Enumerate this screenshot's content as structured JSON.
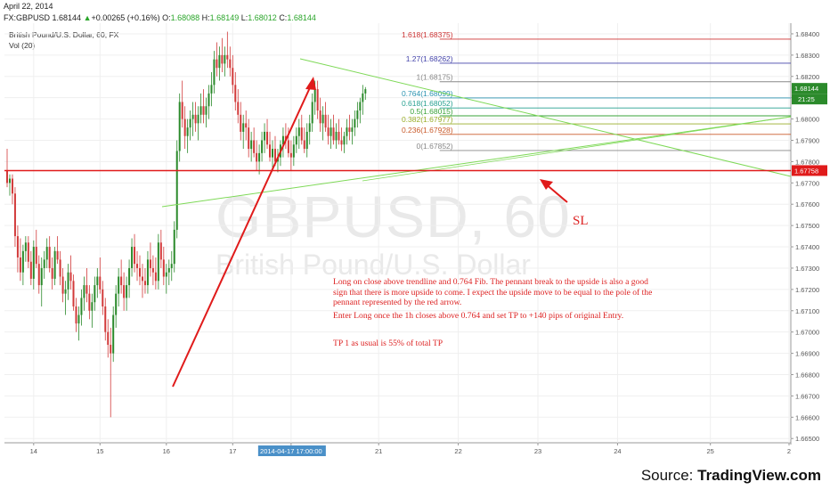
{
  "header": {
    "date": "April 22, 2014",
    "symbol": "FX:GBPUSD",
    "last": "1.68144",
    "change": "+0.00265 (+0.16%)",
    "o": "1.68088",
    "h": "1.68149",
    "l": "1.68012",
    "c": "1.68144",
    "legend_title": "British Pound/U.S. Dollar, 60, FX",
    "legend_vol": "Vol (20)"
  },
  "watermark": {
    "symbol": "GBPUSD, 60",
    "name": "British Pound/U.S. Dollar"
  },
  "source": {
    "prefix": "Source: ",
    "brand": "TradingView.com"
  },
  "annotations": {
    "note1": "Long on close above trendline and 0.764 Fib. The pennant break to the upside is also a good sign that there is more upside to come. I expect the upside move to be equal to the pole of the pennant represented by the red arrow.",
    "note2": "Enter Long once the 1h closes above 0.764 and set TP to +140 pips of original Entry.",
    "note3": "TP 1 as usual is 55% of total TP",
    "sl": "SL"
  },
  "colors": {
    "up": "#2b8a2b",
    "down": "#d23a3a",
    "fib": "#888888",
    "trend": "#7ed957",
    "red": "#e01b1b",
    "blue": "#3a3aa8"
  },
  "chart_data": {
    "type": "candlestick",
    "title": "British Pound/U.S. Dollar, 60, FX",
    "ylim": [
      1.6648,
      1.6845
    ],
    "y_ticks": [
      "1.68400",
      "1.68300",
      "1.68200",
      "1.68100",
      "1.68000",
      "1.67900",
      "1.67800",
      "1.67700",
      "1.67600",
      "1.67500",
      "1.67400",
      "1.67300",
      "1.67200",
      "1.67100",
      "1.67000",
      "1.66900",
      "1.66800",
      "1.66700",
      "1.66600",
      "1.66500"
    ],
    "x_ticks": [
      "14",
      "15",
      "16",
      "17",
      "2014-04-17 17:00:00",
      "21",
      "22",
      "23",
      "24",
      "25",
      "2"
    ],
    "x_tick_bars": [
      10,
      35,
      60,
      85,
      107,
      140,
      170,
      200,
      230,
      265,
      297
    ],
    "last_price_label": "1.68144",
    "time_label": "21:25",
    "support_label": "1.67758",
    "support_level": 1.67758,
    "fib_levels": [
      {
        "label": "1.618(1.68375)",
        "value": 1.68375,
        "color": "#cc3333"
      },
      {
        "label": "1.27(1.68262)",
        "value": 1.68262,
        "color": "#4444aa"
      },
      {
        "label": "1(1.68175)",
        "value": 1.68175,
        "color": "#888888"
      },
      {
        "label": "0.764(1.68099)",
        "value": 1.68099,
        "color": "#2a93b0"
      },
      {
        "label": "0.618(1.68052)",
        "value": 1.68052,
        "color": "#27a090"
      },
      {
        "label": "0.5(1.68015)",
        "value": 1.68015,
        "color": "#3aa33a"
      },
      {
        "label": "0.382(1.67977)",
        "value": 1.67977,
        "color": "#9aae2a"
      },
      {
        "label": "0.236(1.67928)",
        "value": 1.67928,
        "color": "#c95a2a"
      },
      {
        "label": "0(1.67852)",
        "value": 1.67852,
        "color": "#888888"
      }
    ],
    "candles": [
      [
        1.6776,
        1.6786,
        1.6768,
        1.677
      ],
      [
        1.677,
        1.6774,
        1.6764,
        1.6772
      ],
      [
        1.6772,
        1.6774,
        1.676,
        1.6765
      ],
      [
        1.6765,
        1.6768,
        1.674,
        1.6745
      ],
      [
        1.6745,
        1.675,
        1.6728,
        1.6735
      ],
      [
        1.6735,
        1.6744,
        1.6724,
        1.6728
      ],
      [
        1.6728,
        1.6741,
        1.6722,
        1.6738
      ],
      [
        1.6738,
        1.6745,
        1.6733,
        1.6742
      ],
      [
        1.6742,
        1.6745,
        1.673,
        1.6733
      ],
      [
        1.6733,
        1.6738,
        1.6722,
        1.6725
      ],
      [
        1.6725,
        1.6743,
        1.672,
        1.674
      ],
      [
        1.674,
        1.6748,
        1.673,
        1.6732
      ],
      [
        1.6732,
        1.6736,
        1.6718,
        1.6722
      ],
      [
        1.6722,
        1.6735,
        1.6712,
        1.673
      ],
      [
        1.673,
        1.6738,
        1.6725,
        1.6734
      ],
      [
        1.6734,
        1.6744,
        1.673,
        1.674
      ],
      [
        1.674,
        1.6745,
        1.6728,
        1.673
      ],
      [
        1.673,
        1.6735,
        1.672,
        1.6725
      ],
      [
        1.6725,
        1.674,
        1.6722,
        1.6738
      ],
      [
        1.6738,
        1.6745,
        1.6732,
        1.6734
      ],
      [
        1.6734,
        1.6738,
        1.6722,
        1.6726
      ],
      [
        1.6726,
        1.673,
        1.6714,
        1.6718
      ],
      [
        1.6718,
        1.6724,
        1.6708,
        1.672
      ],
      [
        1.672,
        1.6732,
        1.6715,
        1.6728
      ],
      [
        1.6728,
        1.6736,
        1.672,
        1.6724
      ],
      [
        1.6724,
        1.6727,
        1.671,
        1.6712
      ],
      [
        1.6712,
        1.6716,
        1.67,
        1.6704
      ],
      [
        1.6704,
        1.6712,
        1.6696,
        1.6708
      ],
      [
        1.6708,
        1.672,
        1.6703,
        1.6716
      ],
      [
        1.6716,
        1.6726,
        1.671,
        1.6722
      ],
      [
        1.6722,
        1.673,
        1.6714,
        1.6718
      ],
      [
        1.6718,
        1.6722,
        1.6706,
        1.671
      ],
      [
        1.671,
        1.6718,
        1.6702,
        1.6714
      ],
      [
        1.6714,
        1.6726,
        1.671,
        1.6722
      ],
      [
        1.6722,
        1.673,
        1.6716,
        1.6726
      ],
      [
        1.6726,
        1.6735,
        1.6718,
        1.672
      ],
      [
        1.672,
        1.6724,
        1.6708,
        1.6712
      ],
      [
        1.6712,
        1.6716,
        1.6696,
        1.67
      ],
      [
        1.67,
        1.6706,
        1.6688,
        1.6694
      ],
      [
        1.6694,
        1.6702,
        1.666,
        1.669
      ],
      [
        1.669,
        1.6712,
        1.6686,
        1.6708
      ],
      [
        1.6708,
        1.6722,
        1.6702,
        1.6718
      ],
      [
        1.6718,
        1.673,
        1.6712,
        1.6726
      ],
      [
        1.6726,
        1.6734,
        1.6718,
        1.6722
      ],
      [
        1.6722,
        1.6728,
        1.671,
        1.6716
      ],
      [
        1.6716,
        1.6726,
        1.671,
        1.6722
      ],
      [
        1.6722,
        1.6734,
        1.6716,
        1.673
      ],
      [
        1.673,
        1.6744,
        1.6726,
        1.674
      ],
      [
        1.674,
        1.6746,
        1.6728,
        1.6732
      ],
      [
        1.6732,
        1.6738,
        1.6724,
        1.673
      ],
      [
        1.673,
        1.6736,
        1.6722,
        1.6726
      ],
      [
        1.6726,
        1.6732,
        1.6716,
        1.6724
      ],
      [
        1.6724,
        1.673,
        1.6718,
        1.6722
      ],
      [
        1.6722,
        1.6738,
        1.6718,
        1.6734
      ],
      [
        1.6734,
        1.6742,
        1.6726,
        1.673
      ],
      [
        1.673,
        1.6736,
        1.6722,
        1.6728
      ],
      [
        1.6728,
        1.6735,
        1.672,
        1.6724
      ],
      [
        1.6724,
        1.6746,
        1.672,
        1.6742
      ],
      [
        1.6742,
        1.6748,
        1.673,
        1.6734
      ],
      [
        1.6734,
        1.674,
        1.6722,
        1.6726
      ],
      [
        1.6726,
        1.6732,
        1.6718,
        1.6728
      ],
      [
        1.6728,
        1.6734,
        1.6722,
        1.673
      ],
      [
        1.673,
        1.6738,
        1.6724,
        1.6732
      ],
      [
        1.6732,
        1.6752,
        1.6728,
        1.6748
      ],
      [
        1.6748,
        1.679,
        1.6744,
        1.6785
      ],
      [
        1.6785,
        1.6812,
        1.678,
        1.6808
      ],
      [
        1.6808,
        1.6818,
        1.6796,
        1.68
      ],
      [
        1.68,
        1.6806,
        1.6786,
        1.6792
      ],
      [
        1.6792,
        1.68,
        1.6784,
        1.6796
      ],
      [
        1.6796,
        1.6804,
        1.679,
        1.68
      ],
      [
        1.68,
        1.6808,
        1.6792,
        1.6802
      ],
      [
        1.6802,
        1.6808,
        1.6794,
        1.6798
      ],
      [
        1.6798,
        1.6806,
        1.679,
        1.6802
      ],
      [
        1.6802,
        1.6812,
        1.6798,
        1.6806
      ],
      [
        1.6806,
        1.6814,
        1.6798,
        1.6802
      ],
      [
        1.6802,
        1.681,
        1.6796,
        1.6806
      ],
      [
        1.6806,
        1.6816,
        1.68,
        1.6812
      ],
      [
        1.6812,
        1.6822,
        1.6806,
        1.6816
      ],
      [
        1.6816,
        1.6832,
        1.6812,
        1.6828
      ],
      [
        1.6828,
        1.6836,
        1.682,
        1.6824
      ],
      [
        1.6824,
        1.6834,
        1.6818,
        1.683
      ],
      [
        1.683,
        1.6838,
        1.6822,
        1.6826
      ],
      [
        1.6826,
        1.6834,
        1.682,
        1.683
      ],
      [
        1.683,
        1.6841,
        1.6824,
        1.6828
      ],
      [
        1.6828,
        1.6834,
        1.682,
        1.6824
      ],
      [
        1.6824,
        1.683,
        1.6812,
        1.6816
      ],
      [
        1.6816,
        1.6822,
        1.6804,
        1.6808
      ],
      [
        1.6808,
        1.6814,
        1.6798,
        1.6802
      ],
      [
        1.6802,
        1.6808,
        1.679,
        1.6794
      ],
      [
        1.6794,
        1.6802,
        1.6786,
        1.6798
      ],
      [
        1.6798,
        1.6804,
        1.679,
        1.6796
      ],
      [
        1.6796,
        1.68,
        1.6782,
        1.6786
      ],
      [
        1.6786,
        1.6794,
        1.678,
        1.679
      ],
      [
        1.679,
        1.6796,
        1.6782,
        1.6784
      ],
      [
        1.6784,
        1.679,
        1.6776,
        1.678
      ],
      [
        1.678,
        1.6788,
        1.6774,
        1.6784
      ],
      [
        1.6784,
        1.6794,
        1.678,
        1.679
      ],
      [
        1.679,
        1.6798,
        1.6784,
        1.6794
      ],
      [
        1.6794,
        1.68,
        1.6786,
        1.6788
      ],
      [
        1.6788,
        1.6794,
        1.678,
        1.6782
      ],
      [
        1.6782,
        1.679,
        1.6776,
        1.6786
      ],
      [
        1.6786,
        1.6792,
        1.6778,
        1.678
      ],
      [
        1.678,
        1.6786,
        1.6775,
        1.6782
      ],
      [
        1.6782,
        1.679,
        1.6778,
        1.6788
      ],
      [
        1.6788,
        1.6796,
        1.6782,
        1.6792
      ],
      [
        1.6792,
        1.6798,
        1.6786,
        1.679
      ],
      [
        1.679,
        1.6796,
        1.6782,
        1.6784
      ],
      [
        1.6784,
        1.679,
        1.6776,
        1.6782
      ],
      [
        1.6782,
        1.6792,
        1.6778,
        1.6788
      ],
      [
        1.6788,
        1.6796,
        1.6784,
        1.6792
      ],
      [
        1.6792,
        1.68,
        1.6786,
        1.6796
      ],
      [
        1.6796,
        1.6802,
        1.6788,
        1.679
      ],
      [
        1.679,
        1.6796,
        1.6784,
        1.6786
      ],
      [
        1.6786,
        1.6798,
        1.6782,
        1.6794
      ],
      [
        1.6794,
        1.6802,
        1.6788,
        1.6798
      ],
      [
        1.6798,
        1.6812,
        1.6794,
        1.6808
      ],
      [
        1.6808,
        1.6818,
        1.6802,
        1.6814
      ],
      [
        1.6814,
        1.6818,
        1.68,
        1.6804
      ],
      [
        1.6804,
        1.681,
        1.6794,
        1.6798
      ],
      [
        1.6798,
        1.6806,
        1.679,
        1.6802
      ],
      [
        1.6802,
        1.6808,
        1.6794,
        1.6796
      ],
      [
        1.6796,
        1.6802,
        1.6788,
        1.6792
      ],
      [
        1.6792,
        1.68,
        1.6786,
        1.6796
      ],
      [
        1.6796,
        1.6802,
        1.6788,
        1.679
      ],
      [
        1.679,
        1.6798,
        1.6786,
        1.6794
      ],
      [
        1.6794,
        1.68,
        1.6788,
        1.679
      ],
      [
        1.679,
        1.6796,
        1.6785,
        1.6788
      ],
      [
        1.6788,
        1.6794,
        1.6784,
        1.6792
      ],
      [
        1.6792,
        1.68,
        1.6788,
        1.6796
      ],
      [
        1.6796,
        1.6802,
        1.679,
        1.6794
      ],
      [
        1.6794,
        1.68,
        1.6788,
        1.6796
      ],
      [
        1.6796,
        1.6804,
        1.6792,
        1.68
      ],
      [
        1.68,
        1.6808,
        1.6796,
        1.6804
      ],
      [
        1.6804,
        1.681,
        1.6798,
        1.6808
      ],
      [
        1.6808,
        1.6816,
        1.6802,
        1.6812
      ],
      [
        1.6812,
        1.6815,
        1.6809,
        1.6814
      ]
    ]
  }
}
